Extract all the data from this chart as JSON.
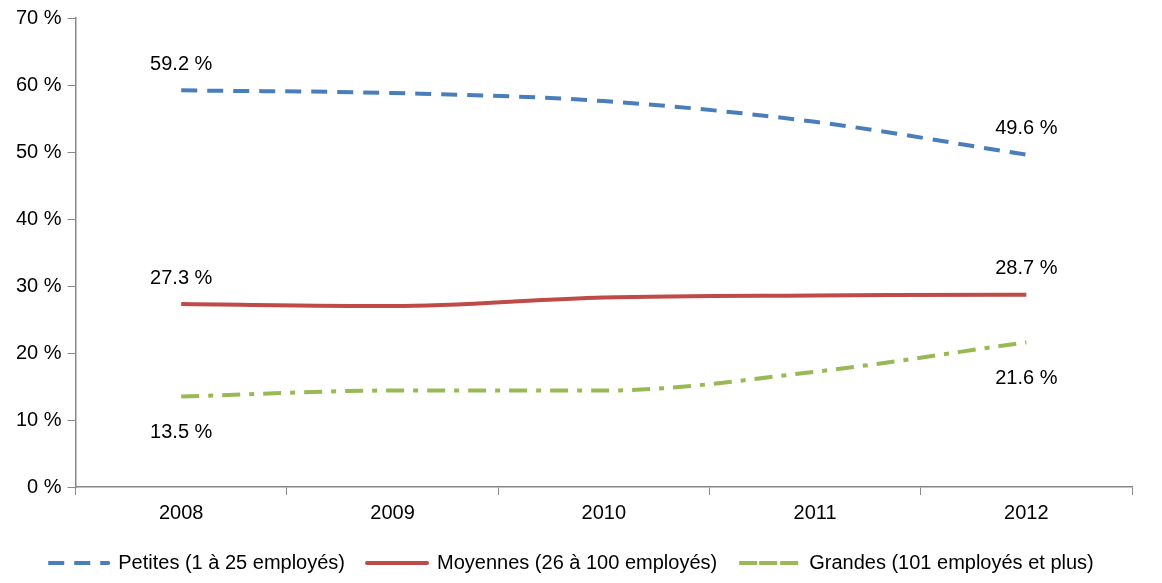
{
  "chart_data": {
    "type": "line",
    "categories": [
      "2008",
      "2009",
      "2010",
      "2011",
      "2012"
    ],
    "series": [
      {
        "name": "Petites (1 à 25 employés)",
        "color": "#4a7ebb",
        "line_style": "dashed",
        "values": [
          59.2,
          58.8,
          57.6,
          54.5,
          49.6
        ],
        "value_labels": [
          "59.2 %",
          null,
          null,
          null,
          "49.6 %"
        ]
      },
      {
        "name": "Moyennes (26 à 100 employés)",
        "color": "#be4b48",
        "line_style": "solid",
        "values": [
          27.3,
          27.0,
          28.3,
          28.6,
          28.7
        ],
        "value_labels": [
          "27.3 %",
          null,
          null,
          null,
          "28.7 %"
        ]
      },
      {
        "name": "Grandes (101 employés et plus)",
        "color": "#98b954",
        "line_style": "dashdot",
        "values": [
          13.5,
          14.4,
          14.4,
          17.2,
          21.6
        ],
        "value_labels": [
          "13.5 %",
          null,
          null,
          null,
          "21.6 %"
        ]
      }
    ],
    "ylim": [
      0,
      70
    ],
    "yticks": [
      {
        "value": 0,
        "label": "0 %"
      },
      {
        "value": 10,
        "label": "10 %"
      },
      {
        "value": 20,
        "label": "20 %"
      },
      {
        "value": 30,
        "label": "30 %"
      },
      {
        "value": 40,
        "label": "40 %"
      },
      {
        "value": 50,
        "label": "50 %"
      },
      {
        "value": 60,
        "label": "60 %"
      },
      {
        "value": 70,
        "label": "70 %"
      }
    ],
    "grid": false,
    "legend": "bottom",
    "marker": "none"
  }
}
